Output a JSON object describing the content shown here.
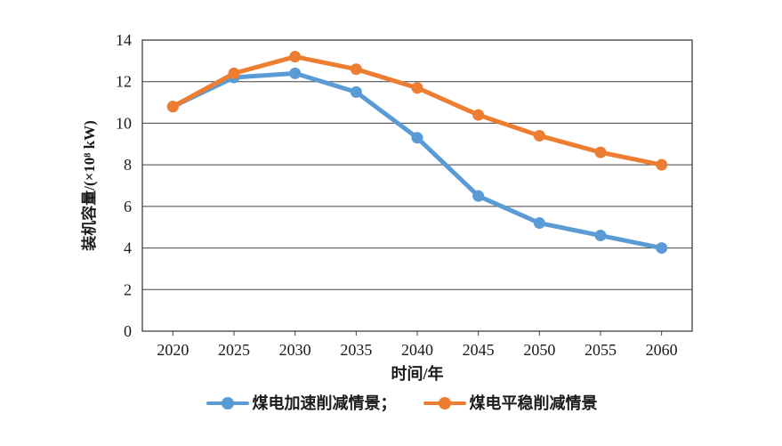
{
  "chart_data": {
    "type": "line",
    "x": [
      "2020",
      "2025",
      "2030",
      "2035",
      "2040",
      "2045",
      "2050",
      "2055",
      "2060"
    ],
    "series": [
      {
        "name": "煤电加速削减情景",
        "legend_label": "煤电加速削减情景；",
        "color": "#5B9BD5",
        "values": [
          10.8,
          12.2,
          12.4,
          11.5,
          9.3,
          6.5,
          5.2,
          4.6,
          4.0
        ]
      },
      {
        "name": "煤电平稳削减情景",
        "legend_label": "煤电平稳削减情景",
        "color": "#ED7D31",
        "values": [
          10.8,
          12.4,
          13.2,
          12.6,
          11.7,
          10.4,
          9.4,
          8.6,
          8.0
        ]
      }
    ],
    "title": "",
    "xlabel": "时间/年",
    "ylabel": "装机容量/(×10⁸ kW)",
    "ylim": [
      0,
      14
    ],
    "ytick_step": 2,
    "yticks": [
      "0",
      "2",
      "4",
      "6",
      "8",
      "10",
      "12",
      "14"
    ],
    "grid": true,
    "legend_position": "bottom"
  },
  "style": {
    "axis_color": "#404040",
    "text_color": "#1a1a1a",
    "background": "#ffffff"
  }
}
